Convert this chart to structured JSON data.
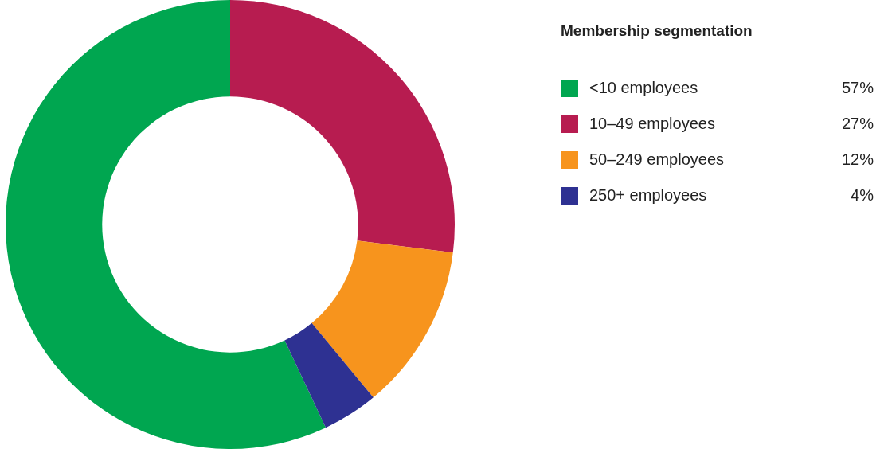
{
  "chart_data": {
    "type": "donut",
    "legend_title": "Membership segmentation",
    "categories": [
      "<10 employees",
      "10–49 employees",
      "50–249 employees",
      "250+ employees"
    ],
    "values": [
      57,
      27,
      12,
      4
    ],
    "value_labels": [
      "57%",
      "27%",
      "12%",
      "4%"
    ],
    "colors": [
      "#00a650",
      "#b71c50",
      "#f7941d",
      "#2e3192"
    ],
    "legend": "top right"
  }
}
